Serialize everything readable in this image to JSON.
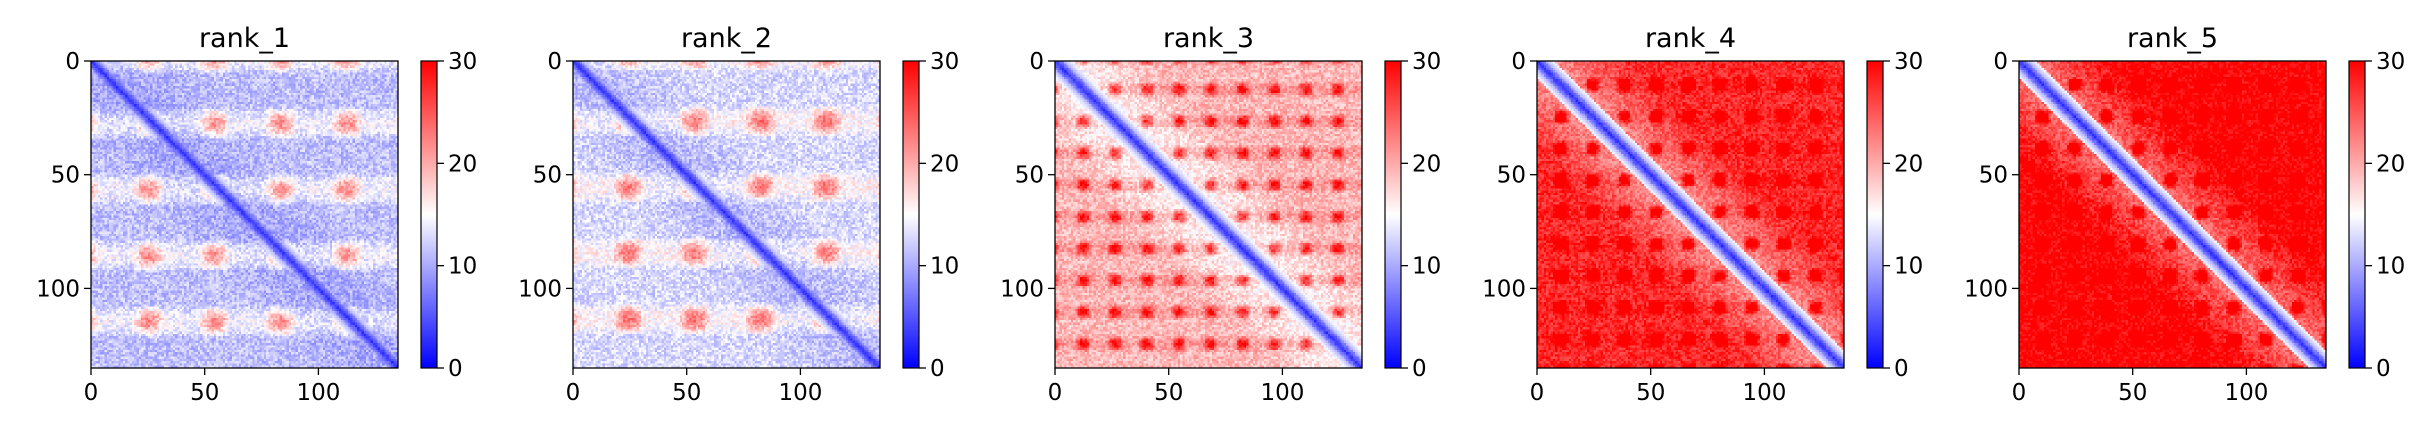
{
  "chart_data": [
    {
      "type": "heatmap",
      "title": "rank_1",
      "rows": 135,
      "cols": 135,
      "xlim": [
        0,
        135
      ],
      "ylim": [
        135,
        0
      ],
      "xticks": [
        0,
        50,
        100
      ],
      "yticks": [
        0,
        50,
        100
      ],
      "colorbar": {
        "min": 0,
        "max": 30,
        "ticks": [
          0,
          10,
          20,
          30
        ]
      },
      "colormap": "bwr",
      "contact_level": 0.78,
      "pattern": {
        "row_period": 29,
        "row_offset": 27,
        "col_period": 29,
        "col_offset": 25
      }
    },
    {
      "type": "heatmap",
      "title": "rank_2",
      "rows": 135,
      "cols": 135,
      "xlim": [
        0,
        135
      ],
      "ylim": [
        135,
        0
      ],
      "xticks": [
        0,
        50,
        100
      ],
      "yticks": [
        0,
        50,
        100
      ],
      "colorbar": {
        "min": 0,
        "max": 30,
        "ticks": [
          0,
          10,
          20,
          30
        ]
      },
      "colormap": "bwr",
      "contact_level": 0.72,
      "pattern": {
        "row_period": 29,
        "row_offset": 26,
        "col_period": 29,
        "col_offset": 24
      }
    },
    {
      "type": "heatmap",
      "title": "rank_3",
      "rows": 135,
      "cols": 135,
      "xlim": [
        0,
        135
      ],
      "ylim": [
        135,
        0
      ],
      "xticks": [
        0,
        50,
        100
      ],
      "yticks": [
        0,
        50,
        100
      ],
      "colorbar": {
        "min": 0,
        "max": 30,
        "ticks": [
          0,
          10,
          20,
          30
        ]
      },
      "colormap": "bwr",
      "contact_level": 0.45,
      "pattern": {
        "row_period": 14,
        "row_offset": 12,
        "col_period": 14,
        "col_offset": 12
      }
    },
    {
      "type": "heatmap",
      "title": "rank_4",
      "rows": 135,
      "cols": 135,
      "xlim": [
        0,
        135
      ],
      "ylim": [
        135,
        0
      ],
      "xticks": [
        0,
        50,
        100
      ],
      "yticks": [
        0,
        50,
        100
      ],
      "colorbar": {
        "min": 0,
        "max": 30,
        "ticks": [
          0,
          10,
          20,
          30
        ]
      },
      "colormap": "bwr",
      "contact_level": 0.1,
      "pattern": {
        "row_period": 14,
        "row_offset": 10,
        "col_period": 14,
        "col_offset": 10
      }
    },
    {
      "type": "heatmap",
      "title": "rank_5",
      "rows": 135,
      "cols": 135,
      "xlim": [
        0,
        135
      ],
      "ylim": [
        135,
        0
      ],
      "xticks": [
        0,
        50,
        100
      ],
      "yticks": [
        0,
        50,
        100
      ],
      "colorbar": {
        "min": 0,
        "max": 30,
        "ticks": [
          0,
          10,
          20,
          30
        ]
      },
      "colormap": "bwr",
      "contact_level": 0.0,
      "pattern": {
        "row_period": 14,
        "row_offset": 10,
        "col_period": 14,
        "col_offset": 10
      }
    }
  ]
}
